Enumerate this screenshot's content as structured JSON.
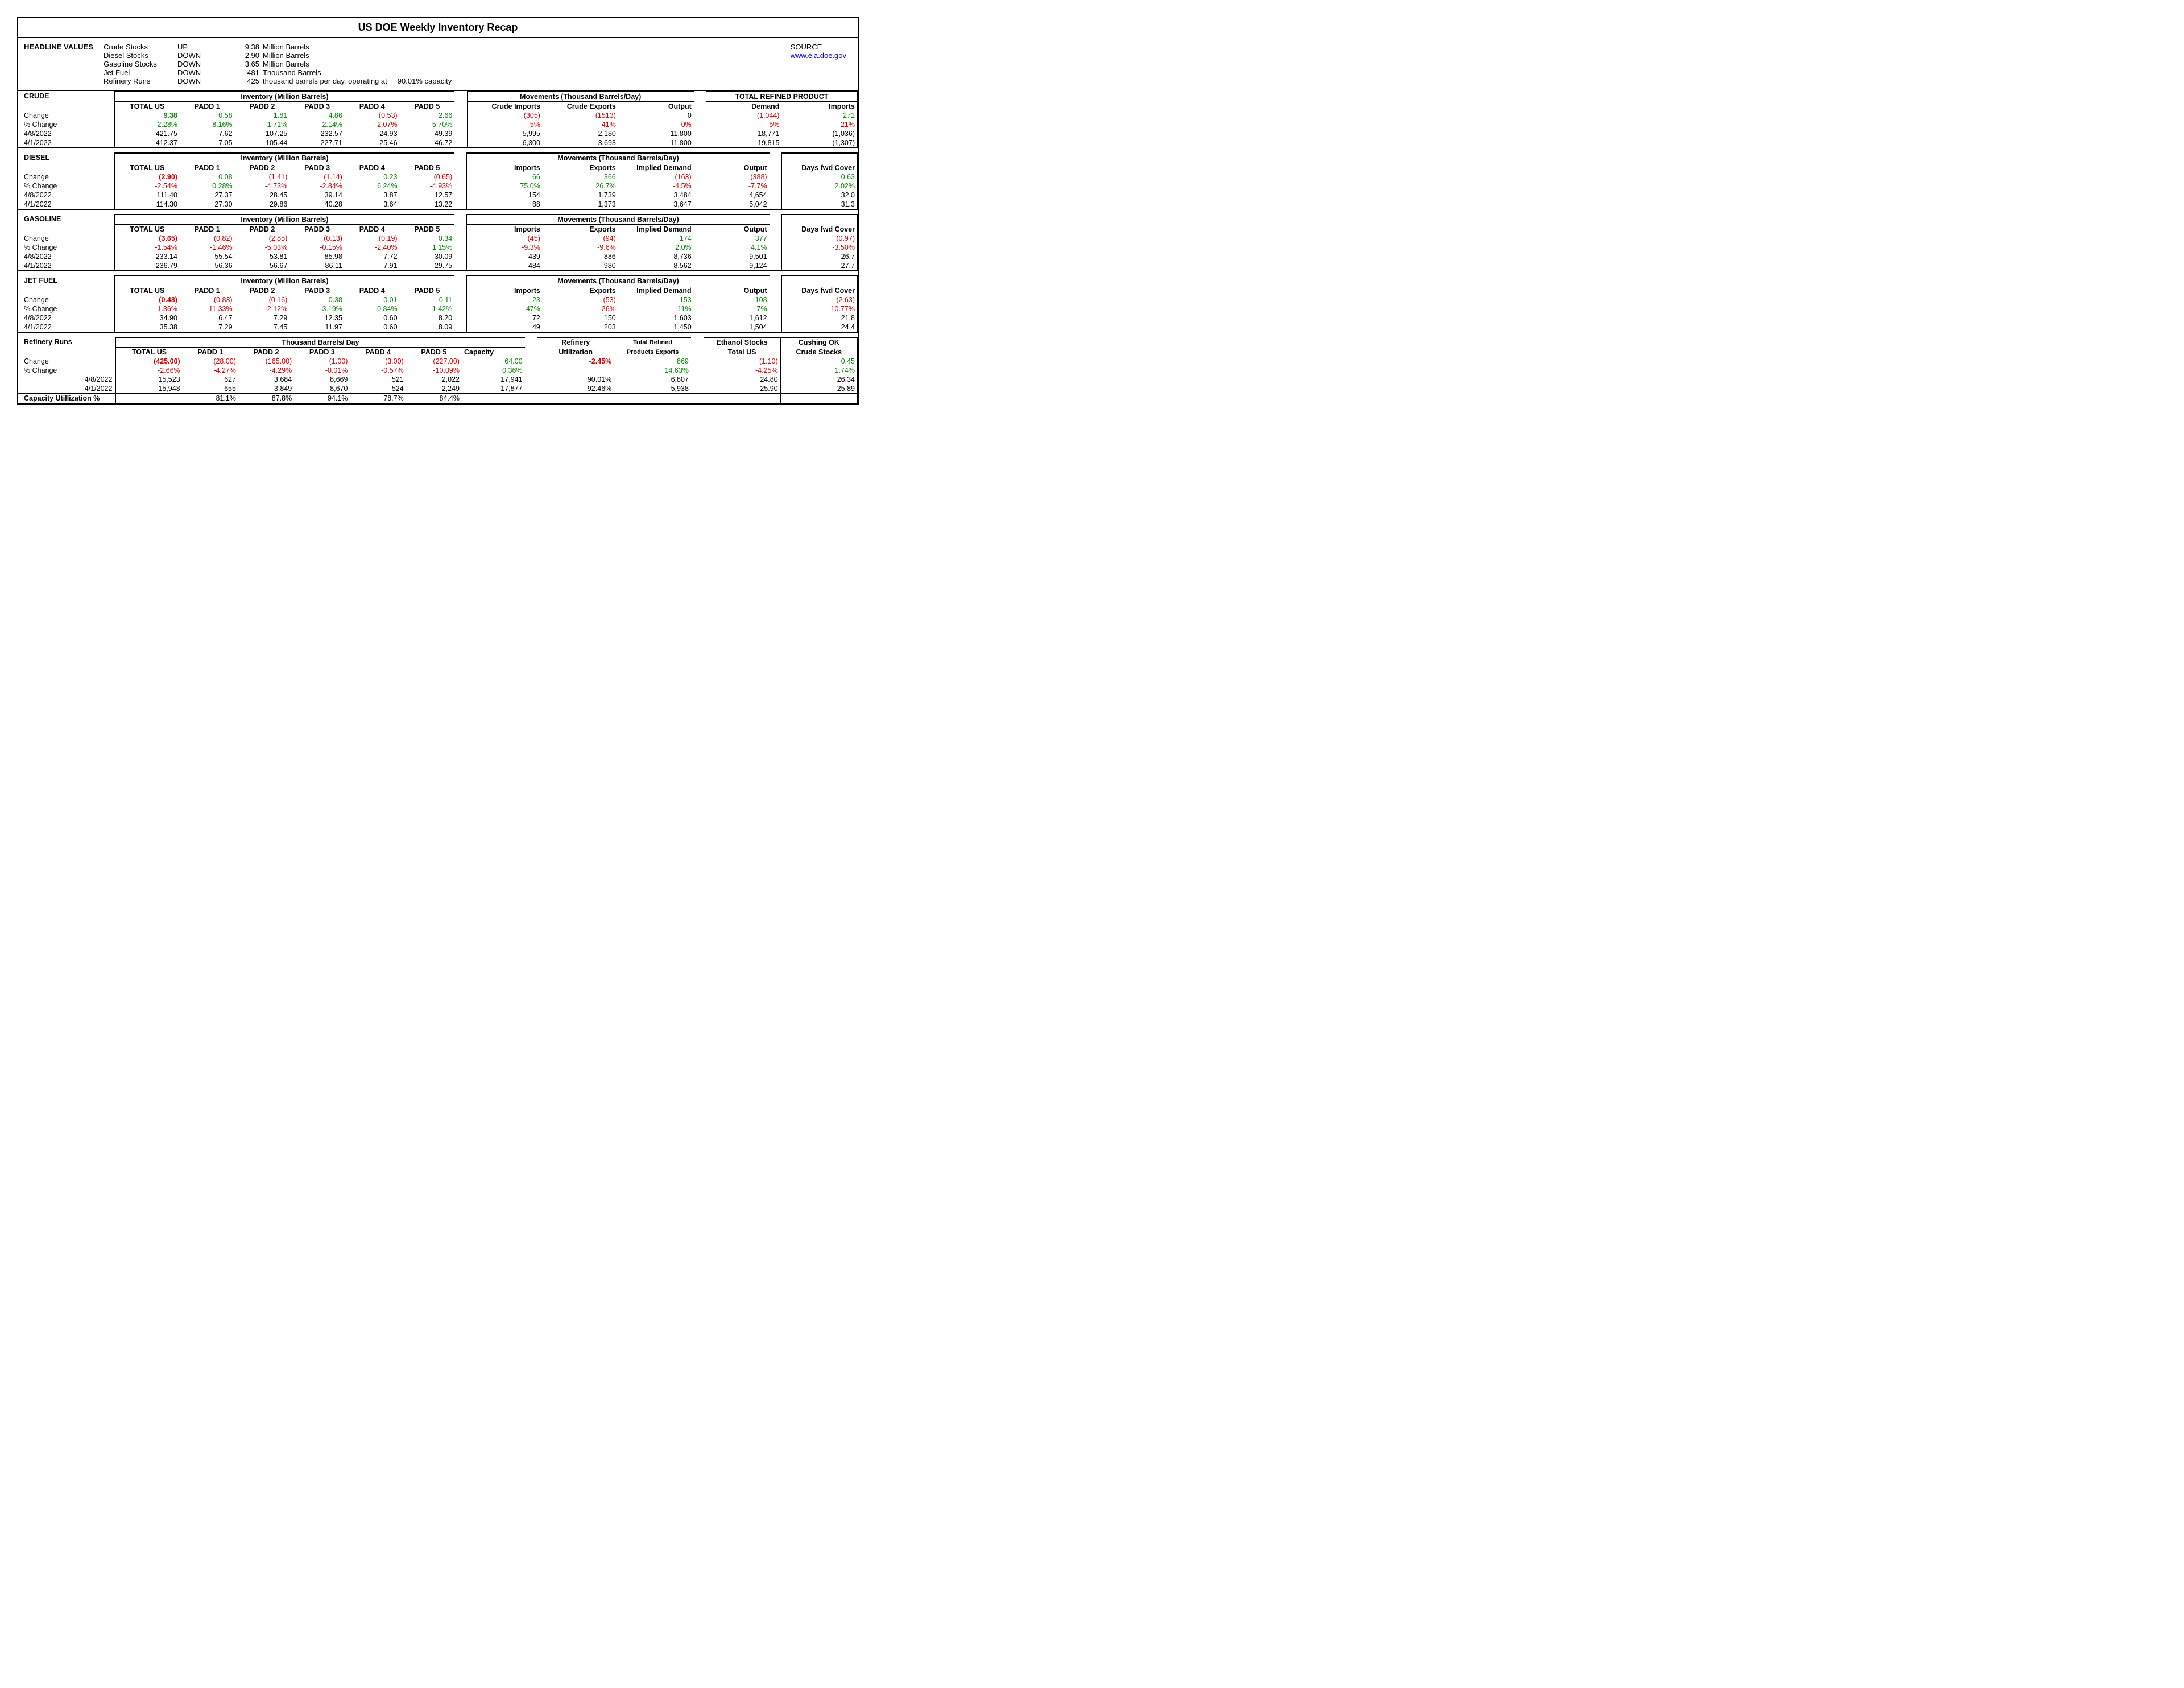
{
  "colors": {
    "pos": "#008b00",
    "neg": "#d40000",
    "link": "#0000ee",
    "text": "#000000",
    "bg": "#ffffff"
  },
  "title": "US DOE Weekly Inventory Recap",
  "source_label": "SOURCE",
  "source_link": "www.eia.doe.gov",
  "headline": {
    "label": "HEADLINE VALUES",
    "rows": [
      {
        "name": "Crude Stocks",
        "dir": "UP",
        "val": "9.38",
        "unit": "Million Barrels"
      },
      {
        "name": "Diesel Stocks",
        "dir": "DOWN",
        "val": "2.90",
        "unit": "Million Barrels"
      },
      {
        "name": "Gasoline Stocks",
        "dir": "DOWN",
        "val": "3.65",
        "unit": "Million Barrels"
      },
      {
        "name": "Jet Fuel",
        "dir": "DOWN",
        "val": "481",
        "unit": "Thousand Barrels"
      },
      {
        "name": "Refinery Runs",
        "dir": "DOWN",
        "val": "425",
        "unit": "thousand barrels per day, operating at",
        "extra": "90.01% capacity"
      }
    ]
  },
  "crude": {
    "label": "CRUDE",
    "inv_header": "Inventory (Million Barrels)",
    "mov_header": "Movements (Thousand Barrels/Day)",
    "refined_header": "TOTAL REFINED PRODUCT",
    "cols": [
      "TOTAL US",
      "PADD 1",
      "PADD 2",
      "PADD 3",
      "PADD 4",
      "PADD 5"
    ],
    "mov_cols": [
      "Crude Imports",
      "Crude Exports",
      "Output"
    ],
    "ref_cols": [
      "Demand",
      "Imports"
    ],
    "r_change": {
      "lab": "Change",
      "v": [
        "9.38",
        "0.58",
        "1.81",
        "4.86",
        "(0.53)",
        "2.66",
        "(305)",
        "(1513)",
        "0",
        "(1,044)",
        "271"
      ],
      "cls": [
        "big pos",
        "pos",
        "pos",
        "pos",
        "neg",
        "pos",
        "neg",
        "neg",
        "",
        "neg",
        "pos"
      ]
    },
    "r_pct": {
      "lab": "% Change",
      "v": [
        "2.28%",
        "8.16%",
        "1.71%",
        "2.14%",
        "-2.07%",
        "5.70%",
        "-5%",
        "-41%",
        "0%",
        "-5%",
        "-21%"
      ],
      "cls": [
        "pos",
        "pos",
        "pos",
        "pos",
        "neg",
        "pos",
        "neg",
        "neg",
        "neg",
        "neg",
        "neg"
      ]
    },
    "r_d1": {
      "lab": "4/8/2022",
      "v": [
        "421.75",
        "7.62",
        "107.25",
        "232.57",
        "24.93",
        "49.39",
        "5,995",
        "2,180",
        "11,800",
        "18,771",
        "(1,036)"
      ]
    },
    "r_d2": {
      "lab": "4/1/2022",
      "v": [
        "412.37",
        "7.05",
        "105.44",
        "227.71",
        "25.46",
        "46.72",
        "6,300",
        "3,693",
        "11,800",
        "19,815",
        "(1,307)"
      ]
    }
  },
  "diesel": {
    "label": "DIESEL",
    "inv_header": "Inventory (Million Barrels)",
    "mov_header": "Movements (Thousand Barrels/Day)",
    "cols": [
      "TOTAL US",
      "PADD 1",
      "PADD 2",
      "PADD 3",
      "PADD 4",
      "PADD 5"
    ],
    "mov_cols": [
      "Imports",
      "Exports",
      "Implied Demand",
      "Output"
    ],
    "extra_col": "Days fwd Cover",
    "r_change": {
      "lab": "Change",
      "v": [
        "(2.90)",
        "0.08",
        "(1.41)",
        "(1.14)",
        "0.23",
        "(0.65)",
        "66",
        "366",
        "(163)",
        "(388)",
        "0.63"
      ],
      "cls": [
        "big neg",
        "pos",
        "neg",
        "neg",
        "pos",
        "neg",
        "pos",
        "pos",
        "neg",
        "neg",
        "pos"
      ]
    },
    "r_pct": {
      "lab": "% Change",
      "v": [
        "-2.54%",
        "0.28%",
        "-4.73%",
        "-2.84%",
        "6.24%",
        "-4.93%",
        "75.0%",
        "26.7%",
        "-4.5%",
        "-7.7%",
        "2.02%"
      ],
      "cls": [
        "neg",
        "pos",
        "neg",
        "neg",
        "pos",
        "neg",
        "pos",
        "pos",
        "neg",
        "neg",
        "pos"
      ]
    },
    "r_d1": {
      "lab": "4/8/2022",
      "v": [
        "111.40",
        "27.37",
        "28.45",
        "39.14",
        "3.87",
        "12.57",
        "154",
        "1,739",
        "3,484",
        "4,654",
        "32.0"
      ]
    },
    "r_d2": {
      "lab": "4/1/2022",
      "v": [
        "114.30",
        "27.30",
        "29.86",
        "40.28",
        "3.64",
        "13.22",
        "88",
        "1,373",
        "3,647",
        "5,042",
        "31.3"
      ]
    }
  },
  "gasoline": {
    "label": "GASOLINE",
    "inv_header": "Inventory (Million Barrels)",
    "mov_header": "Movements (Thousand Barrels/Day)",
    "cols": [
      "TOTAL US",
      "PADD 1",
      "PADD 2",
      "PADD 3",
      "PADD 4",
      "PADD 5"
    ],
    "mov_cols": [
      "Imports",
      "Exports",
      "Implied Demand",
      "Output"
    ],
    "extra_col": "Days fwd Cover",
    "r_change": {
      "lab": "Change",
      "v": [
        "(3.65)",
        "(0.82)",
        "(2.85)",
        "(0.13)",
        "(0.19)",
        "0.34",
        "(45)",
        "(94)",
        "174",
        "377",
        "(0.97)"
      ],
      "cls": [
        "big neg",
        "neg",
        "neg",
        "neg",
        "neg",
        "pos",
        "neg",
        "neg",
        "pos",
        "pos",
        "neg"
      ]
    },
    "r_pct": {
      "lab": "% Change",
      "v": [
        "-1.54%",
        "-1.46%",
        "-5.03%",
        "-0.15%",
        "-2.40%",
        "1.15%",
        "-9.3%",
        "-9.6%",
        "2.0%",
        "4.1%",
        "-3.50%"
      ],
      "cls": [
        "neg",
        "neg",
        "neg",
        "neg",
        "neg",
        "pos",
        "neg",
        "neg",
        "pos",
        "pos",
        "neg"
      ]
    },
    "r_d1": {
      "lab": "4/8/2022",
      "v": [
        "233.14",
        "55.54",
        "53.81",
        "85.98",
        "7.72",
        "30.09",
        "439",
        "886",
        "8,736",
        "9,501",
        "26.7"
      ]
    },
    "r_d2": {
      "lab": "4/1/2022",
      "v": [
        "236.79",
        "56.36",
        "56.67",
        "86.11",
        "7.91",
        "29.75",
        "484",
        "980",
        "8,562",
        "9,124",
        "27.7"
      ]
    }
  },
  "jet": {
    "label": "JET FUEL",
    "inv_header": "Inventory (Million Barrels)",
    "mov_header": "Movements (Thousand Barrels/Day)",
    "cols": [
      "TOTAL US",
      "PADD 1",
      "PADD 2",
      "PADD 3",
      "PADD 4",
      "PADD 5"
    ],
    "mov_cols": [
      "Imports",
      "Exports",
      "Implied Demand",
      "Output"
    ],
    "extra_col": "Days fwd Cover",
    "r_change": {
      "lab": "Change",
      "v": [
        "(0.48)",
        "(0.83)",
        "(0.16)",
        "0.38",
        "0.01",
        "0.11",
        "23",
        "(53)",
        "153",
        "108",
        "(2.63)"
      ],
      "cls": [
        "big neg",
        "neg",
        "neg",
        "pos",
        "pos",
        "pos",
        "pos",
        "neg",
        "pos",
        "pos",
        "neg"
      ]
    },
    "r_pct": {
      "lab": "% Change",
      "v": [
        "-1.36%",
        "-11.33%",
        "-2.12%",
        "3.19%",
        "0.84%",
        "1.42%",
        "47%",
        "-26%",
        "11%",
        "7%",
        "-10.77%"
      ],
      "cls": [
        "neg",
        "neg",
        "neg",
        "pos",
        "pos",
        "pos",
        "pos",
        "neg",
        "pos",
        "pos",
        "neg"
      ]
    },
    "r_d1": {
      "lab": "4/8/2022",
      "v": [
        "34.90",
        "6.47",
        "7.29",
        "12.35",
        "0.60",
        "8.20",
        "72",
        "150",
        "1,603",
        "1,612",
        "21.8"
      ]
    },
    "r_d2": {
      "lab": "4/1/2022",
      "v": [
        "35.38",
        "7.29",
        "7.45",
        "11.97",
        "0.60",
        "8.09",
        "49",
        "203",
        "1,450",
        "1,504",
        "24.4"
      ]
    }
  },
  "refinery": {
    "label": "Refinery Runs",
    "main_header": "Thousand Barrels/ Day",
    "cols": [
      "TOTAL US",
      "PADD 1",
      "PADD 2",
      "PADD 3",
      "PADD 4",
      "PADD 5",
      "Capacity"
    ],
    "xh": {
      "util": "Refinery Utilization",
      "ref": "Total Refined Products Exports",
      "eth": "Ethanol Stocks Total US",
      "cush": "Cushing OK Crude Stocks",
      "util1": "Refinery",
      "util2": "Utilization",
      "ref1": "Total Refined",
      "ref2": "Products Exports",
      "eth1": "Ethanol Stocks",
      "eth2": "Total US",
      "cush1": "Cushing OK",
      "cush2": "Crude Stocks"
    },
    "r_change": {
      "lab": "Change",
      "v": [
        "(425.00)",
        "(28.00)",
        "(165.00)",
        "(1.00)",
        "(3.00)",
        "(227.00)",
        "64.00",
        "-2.45%",
        "869",
        "(1.10)",
        "0.45"
      ],
      "cls": [
        "big neg",
        "neg",
        "neg",
        "neg",
        "neg",
        "neg",
        "pos",
        "big neg",
        "pos",
        "neg",
        "pos"
      ]
    },
    "r_pct": {
      "lab": "% Change",
      "v": [
        "-2.66%",
        "-4.27%",
        "-4.29%",
        "-0.01%",
        "-0.57%",
        "-10.09%",
        "0.36%",
        "",
        "14.63%",
        "-4.25%",
        "1.74%"
      ],
      "cls": [
        "neg",
        "neg",
        "neg",
        "neg",
        "neg",
        "neg",
        "pos",
        "",
        "pos",
        "neg",
        "pos"
      ]
    },
    "r_d1": {
      "lab": "4/8/2022",
      "v": [
        "15,523",
        "627",
        "3,684",
        "8,669",
        "521",
        "2,022",
        "17,941",
        "90.01%",
        "6,807",
        "24.80",
        "26.34"
      ]
    },
    "r_d2": {
      "lab": "4/1/2022",
      "v": [
        "15,948",
        "655",
        "3,849",
        "8,670",
        "524",
        "2,249",
        "17,877",
        "92.46%",
        "5,938",
        "25.90",
        "25.89"
      ]
    },
    "cap": {
      "lab": "Capacity Utillization %",
      "v": [
        "",
        "81.1%",
        "87.8%",
        "94.1%",
        "78.7%",
        "84.4%",
        "",
        "",
        "",
        "",
        ""
      ]
    }
  }
}
